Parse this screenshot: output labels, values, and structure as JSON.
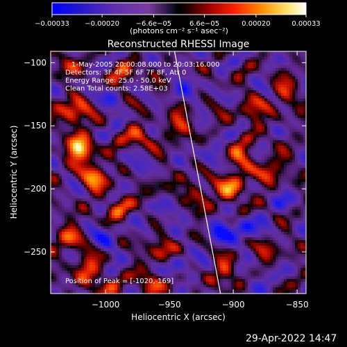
{
  "chart_data": {
    "type": "heatmap",
    "title": "Reconstructed RHESSI Image",
    "xlabel": "Heliocentric X (arcsec)",
    "ylabel": "Heliocentric Y (arcsec)",
    "xlim": [
      -1043,
      -843
    ],
    "ylim": [
      -283,
      -91
    ],
    "x_ticks": [
      -1000,
      -950,
      -900,
      -850
    ],
    "x_tick_labels": [
      "−1000",
      "−950",
      "−900",
      "−850"
    ],
    "y_ticks": [
      -100,
      -150,
      -200,
      -250
    ],
    "y_tick_labels": [
      "−100",
      "−150",
      "−200",
      "−250"
    ],
    "colorbar": {
      "range": [
        -0.00033,
        0.00033
      ],
      "ticks": [
        -0.00033,
        -0.0002,
        -6.6e-05,
        6.6e-05,
        0.0002,
        0.00033
      ],
      "tick_labels": [
        "−0.00033",
        "−0.00020",
        "−6.6e−05",
        "6.6e−05",
        "0.00020",
        "0.00033"
      ],
      "unit_label": "(photons cm⁻² s⁻¹ asec⁻²)",
      "colormap": [
        "#0000ff",
        "#3a1aa8",
        "#7a3ab8",
        "#1a1a1a",
        "#000000",
        "#a00000",
        "#ff2a00",
        "#ff9a00",
        "#ffff80",
        "#ffffff"
      ]
    },
    "annotations": [
      "1-May-2005 20:00:08.000 to 20:03:16.000",
      "Detectors: 3F 4F 5F 6F 7F 8F, Att 0",
      "Energy Range: 25.0 - 50.0 keV",
      "Clean    Total counts: 2.58E+03"
    ],
    "peak": {
      "label": "Position of Peak = [-1020,-169]",
      "x": -1020,
      "y": -169
    },
    "limb_line": {
      "x": [
        -946,
        -910
      ],
      "y": [
        -91,
        -283
      ]
    },
    "hot_spots": [
      {
        "x": -1020,
        "y": -169,
        "v": 1.0
      },
      {
        "x": -1025,
        "y": -140,
        "v": 0.8
      },
      {
        "x": -1008,
        "y": -190,
        "v": 0.7
      },
      {
        "x": -1030,
        "y": -238,
        "v": 0.55
      },
      {
        "x": -1015,
        "y": -262,
        "v": 0.6
      },
      {
        "x": -990,
        "y": -215,
        "v": 0.45
      },
      {
        "x": -975,
        "y": -160,
        "v": 0.5
      },
      {
        "x": -960,
        "y": -205,
        "v": 0.45
      },
      {
        "x": -955,
        "y": -250,
        "v": 0.55
      },
      {
        "x": -965,
        "y": -275,
        "v": 0.5
      },
      {
        "x": -940,
        "y": -150,
        "v": 0.5
      },
      {
        "x": -928,
        "y": -205,
        "v": 0.5
      },
      {
        "x": -900,
        "y": -200,
        "v": 0.75
      },
      {
        "x": -895,
        "y": -175,
        "v": 0.55
      },
      {
        "x": -885,
        "y": -140,
        "v": 0.5
      },
      {
        "x": -870,
        "y": -185,
        "v": 0.55
      },
      {
        "x": -860,
        "y": -125,
        "v": 0.45
      },
      {
        "x": -875,
        "y": -250,
        "v": 0.4
      },
      {
        "x": -905,
        "y": -265,
        "v": 0.5
      },
      {
        "x": -985,
        "y": -110,
        "v": 0.45
      },
      {
        "x": -1030,
        "y": -100,
        "v": 0.4
      },
      {
        "x": -1000,
        "y": -280,
        "v": 0.4
      }
    ],
    "cold_spots": [
      {
        "x": -955,
        "y": -215,
        "v": -0.55
      },
      {
        "x": -945,
        "y": -260,
        "v": -0.45
      },
      {
        "x": -910,
        "y": -235,
        "v": -0.5
      },
      {
        "x": -890,
        "y": -232,
        "v": -0.55
      },
      {
        "x": -935,
        "y": -120,
        "v": -0.35
      },
      {
        "x": -975,
        "y": -185,
        "v": -0.3
      },
      {
        "x": -995,
        "y": -130,
        "v": -0.3
      },
      {
        "x": -1000,
        "y": -240,
        "v": -0.35
      },
      {
        "x": -880,
        "y": -270,
        "v": -0.35
      },
      {
        "x": -860,
        "y": -210,
        "v": -0.3
      },
      {
        "x": -920,
        "y": -170,
        "v": -0.3
      }
    ]
  },
  "footer_date": "29-Apr-2022 14:47"
}
